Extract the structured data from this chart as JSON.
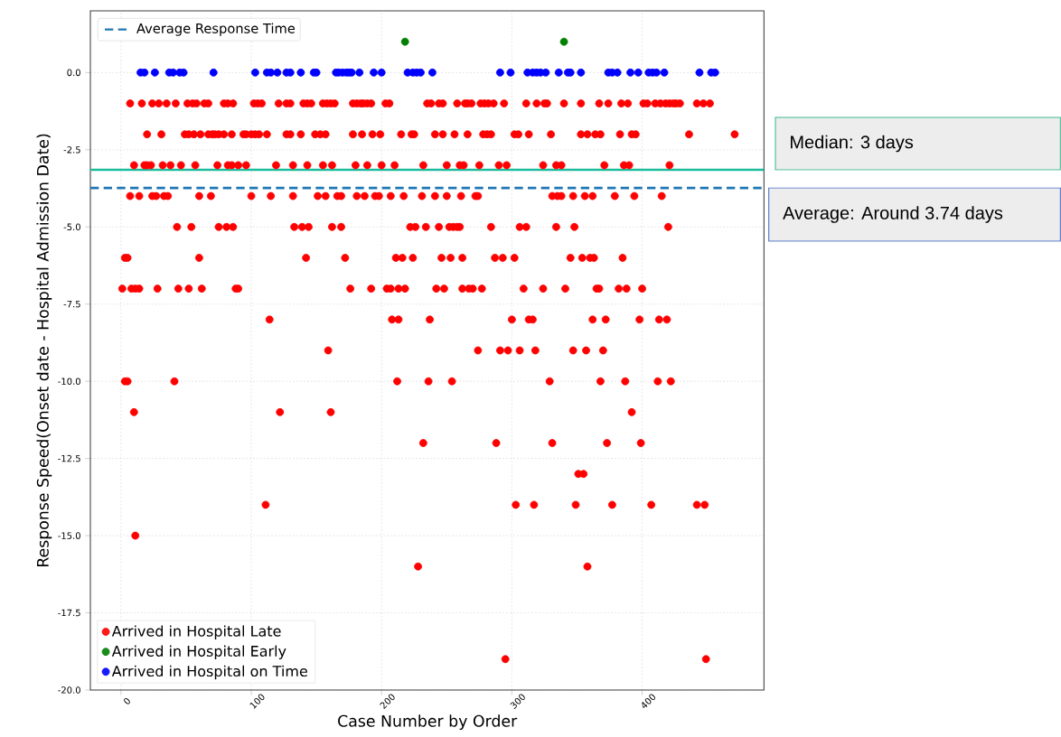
{
  "chart_data": {
    "type": "scatter",
    "xlabel": "Case Number by Order",
    "ylabel": "Response Speed(Onset date - Hospital Admission Date)",
    "xlim": [
      -23.5,
      493.5
    ],
    "ylim": [
      -20,
      2
    ],
    "xticks": [
      0,
      100,
      200,
      300,
      400
    ],
    "yticks": [
      {
        "value": -20,
        "label": "-20.0"
      },
      -17.5,
      {
        "value": -15,
        "label": "-15.0"
      },
      -12.5,
      {
        "value": -10,
        "label": "-10.0"
      },
      -7.5,
      {
        "value": -5,
        "label": "-5.0"
      },
      -2.5,
      {
        "value": 0,
        "label": "0.0"
      }
    ],
    "grid": true,
    "legend": "bottom left",
    "marker": "circle",
    "series": [
      {
        "name": "Arrived in Hospital Late",
        "color": "#ff0000",
        "x": [
          7,
          16,
          24,
          29,
          35,
          42,
          51,
          55,
          58,
          64,
          67,
          79,
          82,
          86,
          102,
          105,
          108,
          121,
          127,
          130,
          140,
          143,
          146,
          155,
          158,
          161,
          164,
          178,
          181,
          184,
          186,
          189,
          192,
          203,
          206,
          235,
          238,
          244,
          247,
          258,
          264,
          266,
          269,
          276,
          279,
          282,
          286,
          294,
          311,
          319,
          325,
          327,
          340,
          353,
          367,
          374,
          384,
          389,
          401,
          404,
          410,
          414,
          418,
          421,
          424,
          426,
          429,
          442,
          447,
          452,
          20,
          31,
          49,
          52,
          56,
          61,
          67,
          70,
          72,
          75,
          79,
          85,
          94,
          96,
          100,
          103,
          106,
          112,
          127,
          130,
          138,
          149,
          153,
          157,
          178,
          185,
          193,
          199,
          215,
          223,
          225,
          241,
          247,
          256,
          266,
          278,
          281,
          284,
          302,
          305,
          313,
          330,
          353,
          358,
          364,
          368,
          383,
          392,
          395,
          436,
          471,
          10,
          18,
          20,
          23,
          32,
          38,
          46,
          57,
          74,
          82,
          85,
          90,
          96,
          119,
          132,
          143,
          155,
          162,
          180,
          189,
          200,
          210,
          232,
          250,
          260,
          263,
          275,
          290,
          296,
          324,
          334,
          338,
          371,
          386,
          390,
          421,
          7,
          14,
          24,
          27,
          33,
          36,
          60,
          69,
          100,
          115,
          132,
          151,
          157,
          166,
          169,
          181,
          187,
          195,
          198,
          207,
          217,
          231,
          241,
          250,
          261,
          272,
          274,
          331,
          335,
          338,
          347,
          356,
          362,
          379,
          394,
          415,
          43,
          54,
          75,
          81,
          86,
          133,
          139,
          144,
          162,
          169,
          222,
          226,
          234,
          244,
          252,
          255,
          258,
          260,
          284,
          306,
          311,
          334,
          348,
          420,
          3,
          5,
          60,
          142,
          172,
          211,
          216,
          224,
          246,
          253,
          262,
          287,
          293,
          302,
          345,
          354,
          360,
          363,
          385,
          1,
          8,
          11,
          14,
          28,
          44,
          52,
          62,
          88,
          90,
          176,
          192,
          204,
          207,
          213,
          218,
          242,
          248,
          262,
          267,
          270,
          277,
          309,
          324,
          341,
          365,
          367,
          382,
          388,
          400,
          114,
          208,
          213,
          237,
          300,
          313,
          316,
          362,
          372,
          398,
          413,
          419,
          159,
          274,
          291,
          297,
          306,
          318,
          347,
          357,
          370,
          3,
          5,
          41,
          212,
          236,
          254,
          329,
          368,
          387,
          412,
          422,
          10,
          122,
          161,
          392,
          232,
          288,
          331,
          373,
          399,
          351,
          355,
          111,
          303,
          317,
          349,
          377,
          407,
          442,
          448,
          11,
          228,
          358,
          295,
          449
        ],
        "values": [
          -1,
          -1,
          -1,
          -1,
          -1,
          -1,
          -1,
          -1,
          -1,
          -1,
          -1,
          -1,
          -1,
          -1,
          -1,
          -1,
          -1,
          -1,
          -1,
          -1,
          -1,
          -1,
          -1,
          -1,
          -1,
          -1,
          -1,
          -1,
          -1,
          -1,
          -1,
          -1,
          -1,
          -1,
          -1,
          -1,
          -1,
          -1,
          -1,
          -1,
          -1,
          -1,
          -1,
          -1,
          -1,
          -1,
          -1,
          -1,
          -1,
          -1,
          -1,
          -1,
          -1,
          -1,
          -1,
          -1,
          -1,
          -1,
          -1,
          -1,
          -1,
          -1,
          -1,
          -1,
          -1,
          -1,
          -1,
          -1,
          -1,
          -1,
          -2,
          -2,
          -2,
          -2,
          -2,
          -2,
          -2,
          -2,
          -2,
          -2,
          -2,
          -2,
          -2,
          -2,
          -2,
          -2,
          -2,
          -2,
          -2,
          -2,
          -2,
          -2,
          -2,
          -2,
          -2,
          -2,
          -2,
          -2,
          -2,
          -2,
          -2,
          -2,
          -2,
          -2,
          -2,
          -2,
          -2,
          -2,
          -2,
          -2,
          -2,
          -2,
          -2,
          -2,
          -2,
          -2,
          -2,
          -2,
          -2,
          -2,
          -2,
          -3,
          -3,
          -3,
          -3,
          -3,
          -3,
          -3,
          -3,
          -3,
          -3,
          -3,
          -3,
          -3,
          -3,
          -3,
          -3,
          -3,
          -3,
          -3,
          -3,
          -3,
          -3,
          -3,
          -3,
          -3,
          -3,
          -3,
          -3,
          -3,
          -3,
          -3,
          -3,
          -3,
          -3,
          -3,
          -3,
          -4,
          -4,
          -4,
          -4,
          -4,
          -4,
          -4,
          -4,
          -4,
          -4,
          -4,
          -4,
          -4,
          -4,
          -4,
          -4,
          -4,
          -4,
          -4,
          -4,
          -4,
          -4,
          -4,
          -4,
          -4,
          -4,
          -4,
          -4,
          -4,
          -4,
          -4,
          -4,
          -4,
          -4,
          -4,
          -4,
          -5,
          -5,
          -5,
          -5,
          -5,
          -5,
          -5,
          -5,
          -5,
          -5,
          -5,
          -5,
          -5,
          -5,
          -5,
          -5,
          -5,
          -5,
          -5,
          -5,
          -5,
          -5,
          -5,
          -5,
          -6,
          -6,
          -6,
          -6,
          -6,
          -6,
          -6,
          -6,
          -6,
          -6,
          -6,
          -6,
          -6,
          -6,
          -6,
          -6,
          -6,
          -6,
          -6,
          -7,
          -7,
          -7,
          -7,
          -7,
          -7,
          -7,
          -7,
          -7,
          -7,
          -7,
          -7,
          -7,
          -7,
          -7,
          -7,
          -7,
          -7,
          -7,
          -7,
          -7,
          -7,
          -7,
          -7,
          -7,
          -7,
          -7,
          -7,
          -7,
          -7,
          -8,
          -8,
          -8,
          -8,
          -8,
          -8,
          -8,
          -8,
          -8,
          -8,
          -8,
          -8,
          -9,
          -9,
          -9,
          -9,
          -9,
          -9,
          -9,
          -9,
          -9,
          -10,
          -10,
          -10,
          -10,
          -10,
          -10,
          -10,
          -10,
          -10,
          -10,
          -10,
          -11,
          -11,
          -11,
          -11,
          -12,
          -12,
          -12,
          -12,
          -12,
          -13,
          -13,
          -14,
          -14,
          -14,
          -14,
          -14,
          -14,
          -14,
          -14,
          -15,
          -16,
          -16,
          -19,
          -19
        ]
      },
      {
        "name": "Arrived in Hospital Early",
        "color": "#008000",
        "x": [
          218,
          340
        ],
        "values": [
          1,
          1
        ]
      },
      {
        "name": "Arrived in Hospital on Time",
        "color": "#0000ff",
        "x": [
          15,
          18,
          26,
          37,
          40,
          45,
          48,
          71,
          103,
          112,
          115,
          120,
          127,
          130,
          138,
          148,
          150,
          165,
          167,
          170,
          173,
          175,
          177,
          183,
          194,
          200,
          220,
          224,
          227,
          230,
          239,
          291,
          299,
          312,
          316,
          319,
          322,
          326,
          336,
          343,
          345,
          353,
          374,
          377,
          381,
          391,
          397,
          405,
          408,
          411,
          417,
          444,
          453,
          456
        ],
        "values": [
          0,
          0,
          0,
          0,
          0,
          0,
          0,
          0,
          0,
          0,
          0,
          0,
          0,
          0,
          0,
          0,
          0,
          0,
          0,
          0,
          0,
          0,
          0,
          0,
          0,
          0,
          0,
          0,
          0,
          0,
          0,
          0,
          0,
          0,
          0,
          0,
          0,
          0,
          0,
          0,
          0,
          0,
          0,
          0,
          0,
          0,
          0,
          0,
          0,
          0,
          0,
          0,
          0,
          0
        ]
      }
    ],
    "ref_lines": [
      {
        "axis": "y",
        "value": -3.74,
        "label": "Average Response Time",
        "color": "#1f77b4",
        "line_style": "dashed"
      },
      {
        "axis": "y",
        "value": -3.15,
        "color": "#1abc9c",
        "line_style": "solid"
      }
    ],
    "annotations": [
      "Median: 3 days",
      "Average: Around 3.74 days"
    ]
  }
}
